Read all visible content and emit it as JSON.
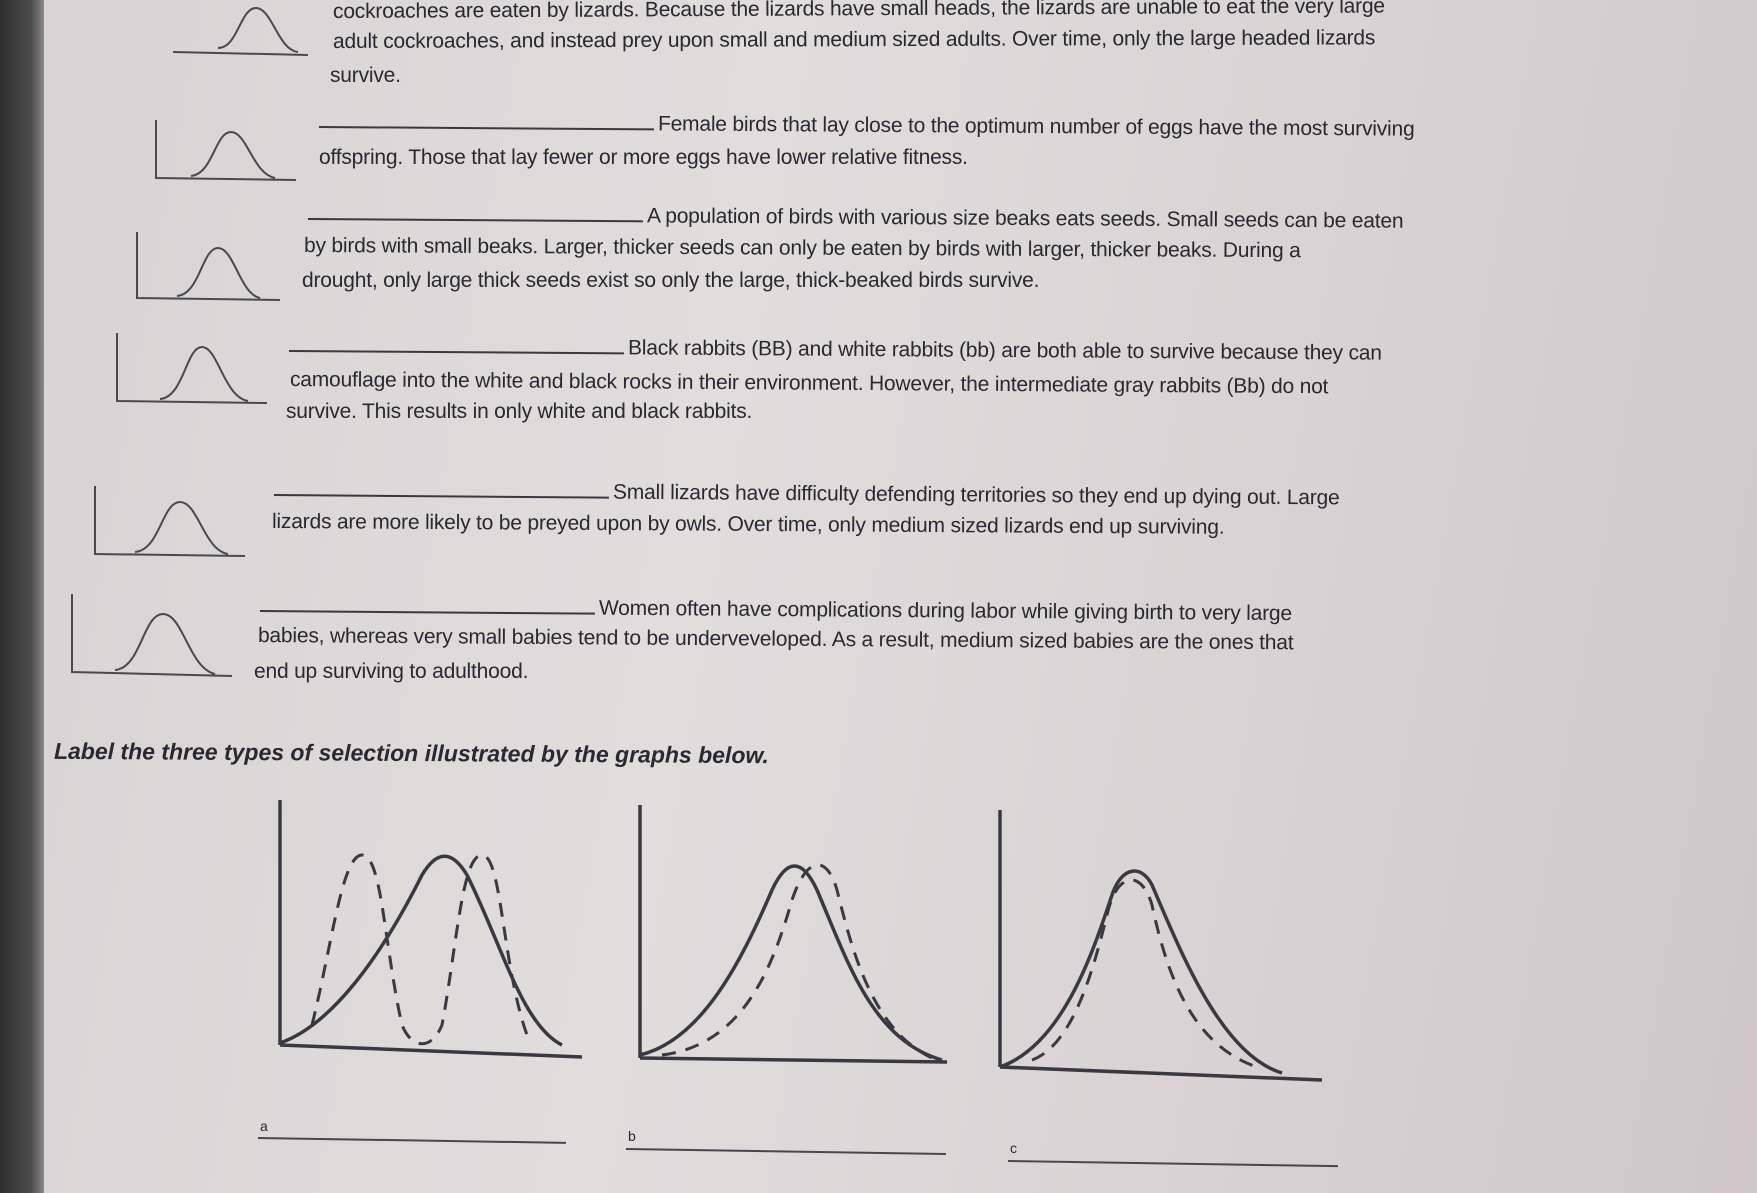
{
  "questions": [
    {
      "lines": [
        "cockroaches are eaten by lizards. Because the lizards have small heads, the lizards are unable to eat the very large",
        "adult cockroaches, and instead prey upon small and medium sized adults. Over time, only the large headed lizards",
        "survive."
      ]
    },
    {
      "lines": [
        "Female birds that lay close to the optimum number of eggs have the most surviving",
        "offspring. Those that lay fewer or more eggs have lower relative fitness."
      ]
    },
    {
      "lines": [
        "A population of birds with various size beaks eats seeds. Small seeds can be eaten",
        "by birds with small beaks. Larger, thicker seeds can only be eaten by birds with larger, thicker beaks. During a",
        "drought, only large thick seeds exist so only the large, thick-beaked birds survive."
      ]
    },
    {
      "lines": [
        "Black rabbits (BB) and white rabbits (bb) are both able to survive because they can",
        "camouflage into the white and black rocks in their environment. However, the intermediate gray rabbits (Bb) do not",
        "survive. This results in only white and black rabbits."
      ]
    },
    {
      "lines": [
        "Small lizards have difficulty defending territories so they end up dying out. Large",
        "lizards are more likely to be preyed upon by owls.  Over time, only medium sized lizards end up surviving."
      ]
    },
    {
      "lines": [
        "Women often have complications during labor while giving birth to very large",
        "babies, whereas very small babies tend to be underveveloped.  As a result, medium sized babies are the ones that",
        "end up surviving to adulthood."
      ]
    }
  ],
  "instruction": "Label the three types of selection illustrated by the graphs below.",
  "graph_labels": [
    "a",
    "b",
    "c"
  ]
}
